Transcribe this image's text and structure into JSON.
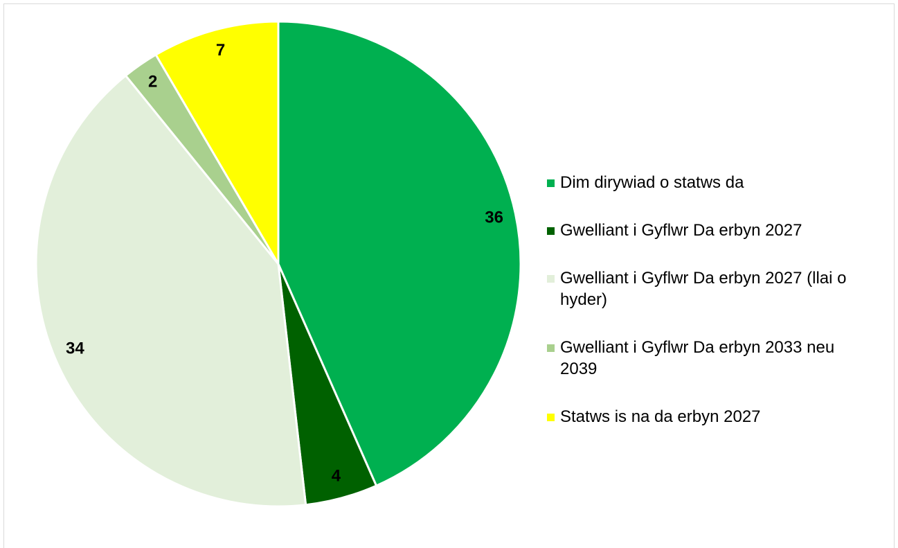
{
  "chart_data": {
    "type": "pie",
    "categories": [
      "Dim dirywiad o statws da",
      "Gwelliant i Gyflwr Da erbyn 2027",
      "Gwelliant i Gyflwr Da erbyn 2027 (llai o hyder)",
      "Gwelliant i Gyflwr Da erbyn 2033 neu 2039",
      "Statws is na da erbyn 2027"
    ],
    "values": [
      36,
      4,
      34,
      2,
      7
    ],
    "colors": [
      "#00b050",
      "#006100",
      "#e2efda",
      "#a9d08e",
      "#ffff00"
    ],
    "legend": "right"
  }
}
